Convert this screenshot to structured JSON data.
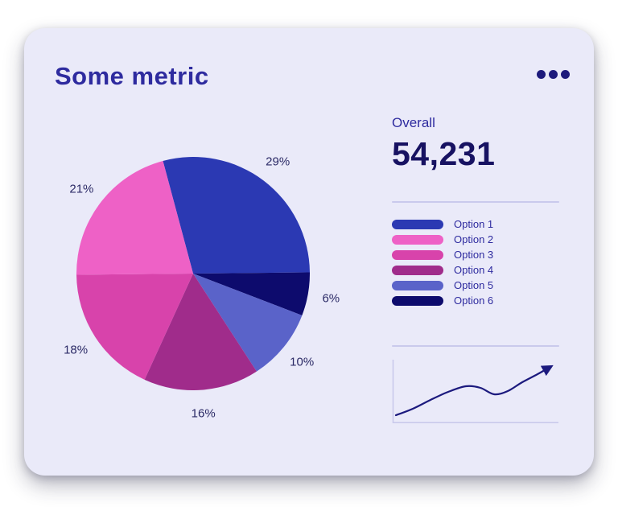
{
  "card": {
    "title": "Some metric"
  },
  "icons": {
    "menu": "ellipsis-icon",
    "trend_end": "arrowhead-icon"
  },
  "overall": {
    "label": "Overall",
    "value": "54,231"
  },
  "colors": {
    "card_background": "#eaeaf9",
    "title": "#2e2b9f",
    "overall_value": "#171262",
    "divider": "#c9c9ec",
    "dots_menu": "#1d1a7c"
  },
  "chart_data": [
    {
      "type": "pie",
      "title": "Some metric",
      "unit": "%",
      "start_angle_deg": -15,
      "slices": [
        {
          "label": "Option 1",
          "pct": 29,
          "color": "#2b39b3"
        },
        {
          "label": "Option 6",
          "pct": 6,
          "color": "#0d0b6d"
        },
        {
          "label": "Option 5",
          "pct": 10,
          "color": "#5a63c9"
        },
        {
          "label": "Option 4",
          "pct": 16,
          "color": "#a02c8b"
        },
        {
          "label": "Option 3",
          "pct": 18,
          "color": "#d843ab"
        },
        {
          "label": "Option 2",
          "pct": 21,
          "color": "#ee61c6"
        }
      ],
      "legend": [
        {
          "label": "Option 1",
          "color": "#2b39b3"
        },
        {
          "label": "Option 2",
          "color": "#ee61c6"
        },
        {
          "label": "Option 3",
          "color": "#d843ab"
        },
        {
          "label": "Option 4",
          "color": "#a02c8b"
        },
        {
          "label": "Option 5",
          "color": "#5a63c9"
        },
        {
          "label": "Option 6",
          "color": "#0d0b6d"
        }
      ],
      "legend_position": "right"
    },
    {
      "type": "line",
      "color": "#1c1a7e",
      "arrow_end": true,
      "axes": true,
      "points": [
        [
          5,
          72
        ],
        [
          26,
          64
        ],
        [
          48,
          53
        ],
        [
          70,
          43
        ],
        [
          92,
          36
        ],
        [
          110,
          38
        ],
        [
          127,
          46
        ],
        [
          144,
          42
        ],
        [
          162,
          31
        ],
        [
          181,
          21
        ],
        [
          197,
          12
        ]
      ]
    }
  ]
}
